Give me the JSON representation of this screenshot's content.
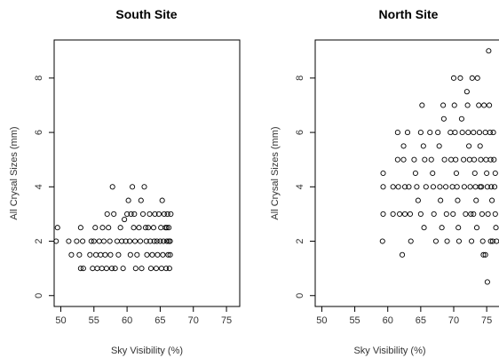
{
  "chart_data": [
    {
      "type": "scatter",
      "title": "South Site",
      "xlabel": "Sky Visibility (%)",
      "ylabel": "All Crysal Sizes (mm)",
      "xlim": [
        49,
        77
      ],
      "ylim": [
        -0.4,
        9.4
      ],
      "xticks": [
        "50",
        "55",
        "60",
        "65",
        "70",
        "75"
      ],
      "yticks": [
        "0",
        "2",
        "4",
        "6",
        "8"
      ],
      "grid": false,
      "legend": "none",
      "points": [
        [
          49.5,
          2.5
        ],
        [
          49.3,
          2.0
        ],
        [
          51.2,
          2.0
        ],
        [
          51.6,
          1.5
        ],
        [
          52.4,
          2.0
        ],
        [
          52.8,
          1.5
        ],
        [
          53.0,
          2.5
        ],
        [
          53.3,
          2.0
        ],
        [
          53.4,
          1.0
        ],
        [
          53.0,
          1.0
        ],
        [
          54.4,
          1.5
        ],
        [
          54.6,
          2.0
        ],
        [
          54.8,
          1.0
        ],
        [
          55.0,
          2.0
        ],
        [
          55.2,
          2.5
        ],
        [
          55.3,
          1.5
        ],
        [
          55.5,
          1.0
        ],
        [
          55.8,
          2.0
        ],
        [
          56.0,
          1.5
        ],
        [
          56.2,
          1.0
        ],
        [
          56.3,
          2.5
        ],
        [
          56.5,
          2.0
        ],
        [
          56.7,
          1.5
        ],
        [
          56.9,
          1.0
        ],
        [
          57.0,
          3.0
        ],
        [
          57.2,
          2.5
        ],
        [
          57.4,
          2.0
        ],
        [
          57.5,
          1.5
        ],
        [
          57.7,
          1.0
        ],
        [
          57.8,
          4.0
        ],
        [
          58.0,
          3.0
        ],
        [
          58.2,
          1.0
        ],
        [
          58.5,
          2.0
        ],
        [
          58.7,
          1.5
        ],
        [
          59.0,
          2.5
        ],
        [
          59.2,
          2.0
        ],
        [
          59.4,
          1.0
        ],
        [
          59.6,
          2.8
        ],
        [
          59.8,
          2.0
        ],
        [
          60.0,
          3.0
        ],
        [
          60.2,
          3.5
        ],
        [
          60.4,
          2.0
        ],
        [
          60.5,
          1.5
        ],
        [
          60.6,
          3.0
        ],
        [
          60.8,
          4.0
        ],
        [
          61.0,
          2.5
        ],
        [
          61.1,
          3.0
        ],
        [
          61.2,
          2.0
        ],
        [
          61.3,
          1.0
        ],
        [
          61.5,
          1.5
        ],
        [
          61.8,
          2.5
        ],
        [
          62.0,
          2.0
        ],
        [
          62.1,
          3.5
        ],
        [
          62.2,
          1.0
        ],
        [
          62.4,
          3.0
        ],
        [
          62.6,
          4.0
        ],
        [
          62.8,
          2.5
        ],
        [
          62.9,
          2.0
        ],
        [
          63.0,
          1.5
        ],
        [
          63.2,
          2.5
        ],
        [
          63.4,
          3.0
        ],
        [
          63.5,
          2.0
        ],
        [
          63.6,
          1.0
        ],
        [
          63.8,
          1.5
        ],
        [
          64.0,
          2.5
        ],
        [
          64.1,
          2.0
        ],
        [
          64.2,
          3.0
        ],
        [
          64.4,
          1.0
        ],
        [
          64.5,
          2.0
        ],
        [
          64.6,
          1.5
        ],
        [
          64.8,
          3.0
        ],
        [
          65.0,
          2.0
        ],
        [
          65.1,
          2.5
        ],
        [
          65.2,
          1.0
        ],
        [
          65.3,
          3.5
        ],
        [
          65.4,
          1.5
        ],
        [
          65.5,
          2.0
        ],
        [
          65.6,
          3.0
        ],
        [
          65.8,
          2.5
        ],
        [
          65.9,
          1.0
        ],
        [
          66.0,
          2.0
        ],
        [
          66.1,
          3.0
        ],
        [
          66.2,
          1.5
        ],
        [
          66.3,
          2.5
        ],
        [
          66.4,
          1.0
        ],
        [
          66.5,
          2.0
        ],
        [
          66.6,
          3.0
        ],
        [
          66.5,
          1.5
        ],
        [
          66.3,
          2.0
        ],
        [
          66.0,
          2.5
        ]
      ]
    },
    {
      "type": "scatter",
      "title": "North Site",
      "xlabel": "Sky Visibility (%)",
      "ylabel": "All Crysal Sizes (mm)",
      "xlim": [
        49,
        77
      ],
      "ylim": [
        -0.4,
        9.4
      ],
      "xticks": [
        "50",
        "55",
        "60",
        "65",
        "70",
        "75"
      ],
      "yticks": [
        "0",
        "2",
        "4",
        "6",
        "8"
      ],
      "grid": false,
      "legend": "none",
      "points": [
        [
          59.3,
          4.5
        ],
        [
          59.3,
          4.0
        ],
        [
          59.3,
          3.0
        ],
        [
          59.2,
          2.0
        ],
        [
          60.8,
          4.0
        ],
        [
          60.8,
          3.0
        ],
        [
          61.5,
          6.0
        ],
        [
          61.5,
          5.0
        ],
        [
          61.6,
          4.0
        ],
        [
          61.8,
          3.0
        ],
        [
          62.4,
          5.5
        ],
        [
          62.4,
          5.0
        ],
        [
          62.6,
          4.0
        ],
        [
          62.6,
          3.0
        ],
        [
          62.2,
          1.5
        ],
        [
          63.0,
          6.0
        ],
        [
          63.2,
          4.0
        ],
        [
          63.4,
          3.0
        ],
        [
          63.5,
          2.0
        ],
        [
          64.0,
          5.0
        ],
        [
          64.2,
          4.5
        ],
        [
          64.4,
          4.0
        ],
        [
          64.6,
          3.5
        ],
        [
          65.0,
          6.0
        ],
        [
          65.2,
          7.0
        ],
        [
          65.4,
          5.5
        ],
        [
          65.6,
          5.0
        ],
        [
          65.8,
          4.0
        ],
        [
          65.0,
          3.0
        ],
        [
          65.5,
          2.5
        ],
        [
          66.4,
          6.0
        ],
        [
          66.6,
          5.0
        ],
        [
          66.8,
          4.5
        ],
        [
          66.9,
          4.0
        ],
        [
          67.0,
          3.0
        ],
        [
          67.3,
          2.0
        ],
        [
          67.6,
          6.0
        ],
        [
          67.8,
          5.5
        ],
        [
          67.9,
          4.0
        ],
        [
          68.0,
          3.5
        ],
        [
          68.2,
          2.5
        ],
        [
          68.4,
          7.0
        ],
        [
          68.5,
          6.5
        ],
        [
          68.6,
          5.0
        ],
        [
          68.8,
          4.0
        ],
        [
          68.9,
          3.0
        ],
        [
          69.0,
          2.0
        ],
        [
          69.5,
          6.0
        ],
        [
          69.6,
          5.0
        ],
        [
          69.8,
          4.0
        ],
        [
          69.9,
          3.0
        ],
        [
          70.0,
          8.0
        ],
        [
          70.1,
          7.0
        ],
        [
          70.2,
          6.0
        ],
        [
          70.3,
          5.0
        ],
        [
          70.4,
          4.5
        ],
        [
          70.5,
          4.0
        ],
        [
          70.6,
          3.5
        ],
        [
          70.7,
          2.5
        ],
        [
          70.8,
          2.0
        ],
        [
          71.0,
          8.0
        ],
        [
          71.2,
          6.5
        ],
        [
          71.3,
          6.0
        ],
        [
          71.5,
          5.0
        ],
        [
          71.6,
          4.0
        ],
        [
          71.8,
          3.0
        ],
        [
          72.0,
          7.5
        ],
        [
          72.1,
          7.0
        ],
        [
          72.2,
          6.0
        ],
        [
          72.3,
          5.5
        ],
        [
          72.4,
          5.0
        ],
        [
          72.5,
          4.0
        ],
        [
          72.6,
          3.0
        ],
        [
          72.7,
          2.0
        ],
        [
          72.8,
          8.0
        ],
        [
          73.0,
          6.0
        ],
        [
          73.1,
          5.0
        ],
        [
          73.2,
          4.5
        ],
        [
          73.3,
          4.0
        ],
        [
          73.4,
          3.5
        ],
        [
          73.5,
          2.5
        ],
        [
          73.6,
          8.0
        ],
        [
          73.8,
          7.0
        ],
        [
          73.9,
          6.0
        ],
        [
          74.0,
          5.5
        ],
        [
          74.1,
          5.0
        ],
        [
          74.2,
          4.0
        ],
        [
          74.3,
          3.0
        ],
        [
          74.4,
          2.0
        ],
        [
          74.5,
          1.5
        ],
        [
          74.6,
          7.0
        ],
        [
          74.8,
          6.0
        ],
        [
          74.9,
          5.0
        ],
        [
          75.0,
          4.5
        ],
        [
          75.1,
          4.0
        ],
        [
          75.2,
          3.0
        ],
        [
          75.3,
          9.0
        ],
        [
          75.4,
          7.0
        ],
        [
          75.5,
          6.0
        ],
        [
          75.6,
          5.0
        ],
        [
          75.7,
          4.0
        ],
        [
          75.8,
          3.5
        ],
        [
          75.9,
          2.0
        ],
        [
          76.0,
          6.0
        ],
        [
          76.1,
          5.0
        ],
        [
          76.2,
          4.0
        ],
        [
          76.3,
          3.0
        ],
        [
          76.4,
          2.5
        ],
        [
          76.5,
          2.0
        ],
        [
          76.7,
          6.0
        ],
        [
          76.8,
          5.0
        ],
        [
          76.9,
          4.0
        ],
        [
          76.9,
          3.0
        ],
        [
          75.1,
          0.5
        ],
        [
          74.8,
          1.5
        ],
        [
          76.6,
          3.5
        ],
        [
          76.3,
          4.5
        ],
        [
          75.6,
          2.0
        ],
        [
          74.0,
          4.0
        ],
        [
          73.0,
          3.0
        ]
      ]
    }
  ]
}
